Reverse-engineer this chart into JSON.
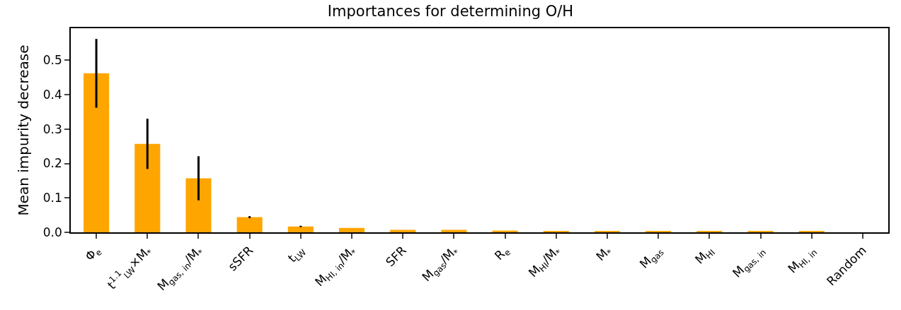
{
  "chart_data": {
    "type": "bar",
    "title": "Importances for determining O/H",
    "ylabel": "Mean impurity decrease",
    "categories": [
      "Φ$_{e}$",
      "t$^{1.1}$$_{LW}$×M$_{*}$",
      "M$_{gas, in}$/M$_{*}$",
      "sSFR",
      "t$_{LW}$",
      "M$_{HI, in}$/M$_{*}$",
      "SFR",
      "M$_{gas}$/M$_{*}$",
      "R$_{e}$",
      "M$_{HI}$/M$_{*}$",
      "M$_{*}$",
      "M$_{gas}$",
      "M$_{HI}$",
      "M$_{gas, in}$",
      "M$_{HI, in}$",
      "Random"
    ],
    "values": [
      0.462,
      0.257,
      0.157,
      0.044,
      0.017,
      0.013,
      0.007,
      0.007,
      0.005,
      0.004,
      0.004,
      0.004,
      0.004,
      0.003,
      0.003,
      0
    ],
    "errors": [
      0.1,
      0.073,
      0.064,
      0.003,
      0.002,
      null,
      null,
      null,
      null,
      null,
      null,
      null,
      null,
      null,
      null,
      null
    ],
    "color": "#ffa500",
    "ylim": [
      0,
      0.593
    ],
    "yticks": [
      {
        "value": 0,
        "label": "0.0"
      },
      0.1,
      0.2,
      0.3,
      0.4,
      0.5
    ]
  }
}
